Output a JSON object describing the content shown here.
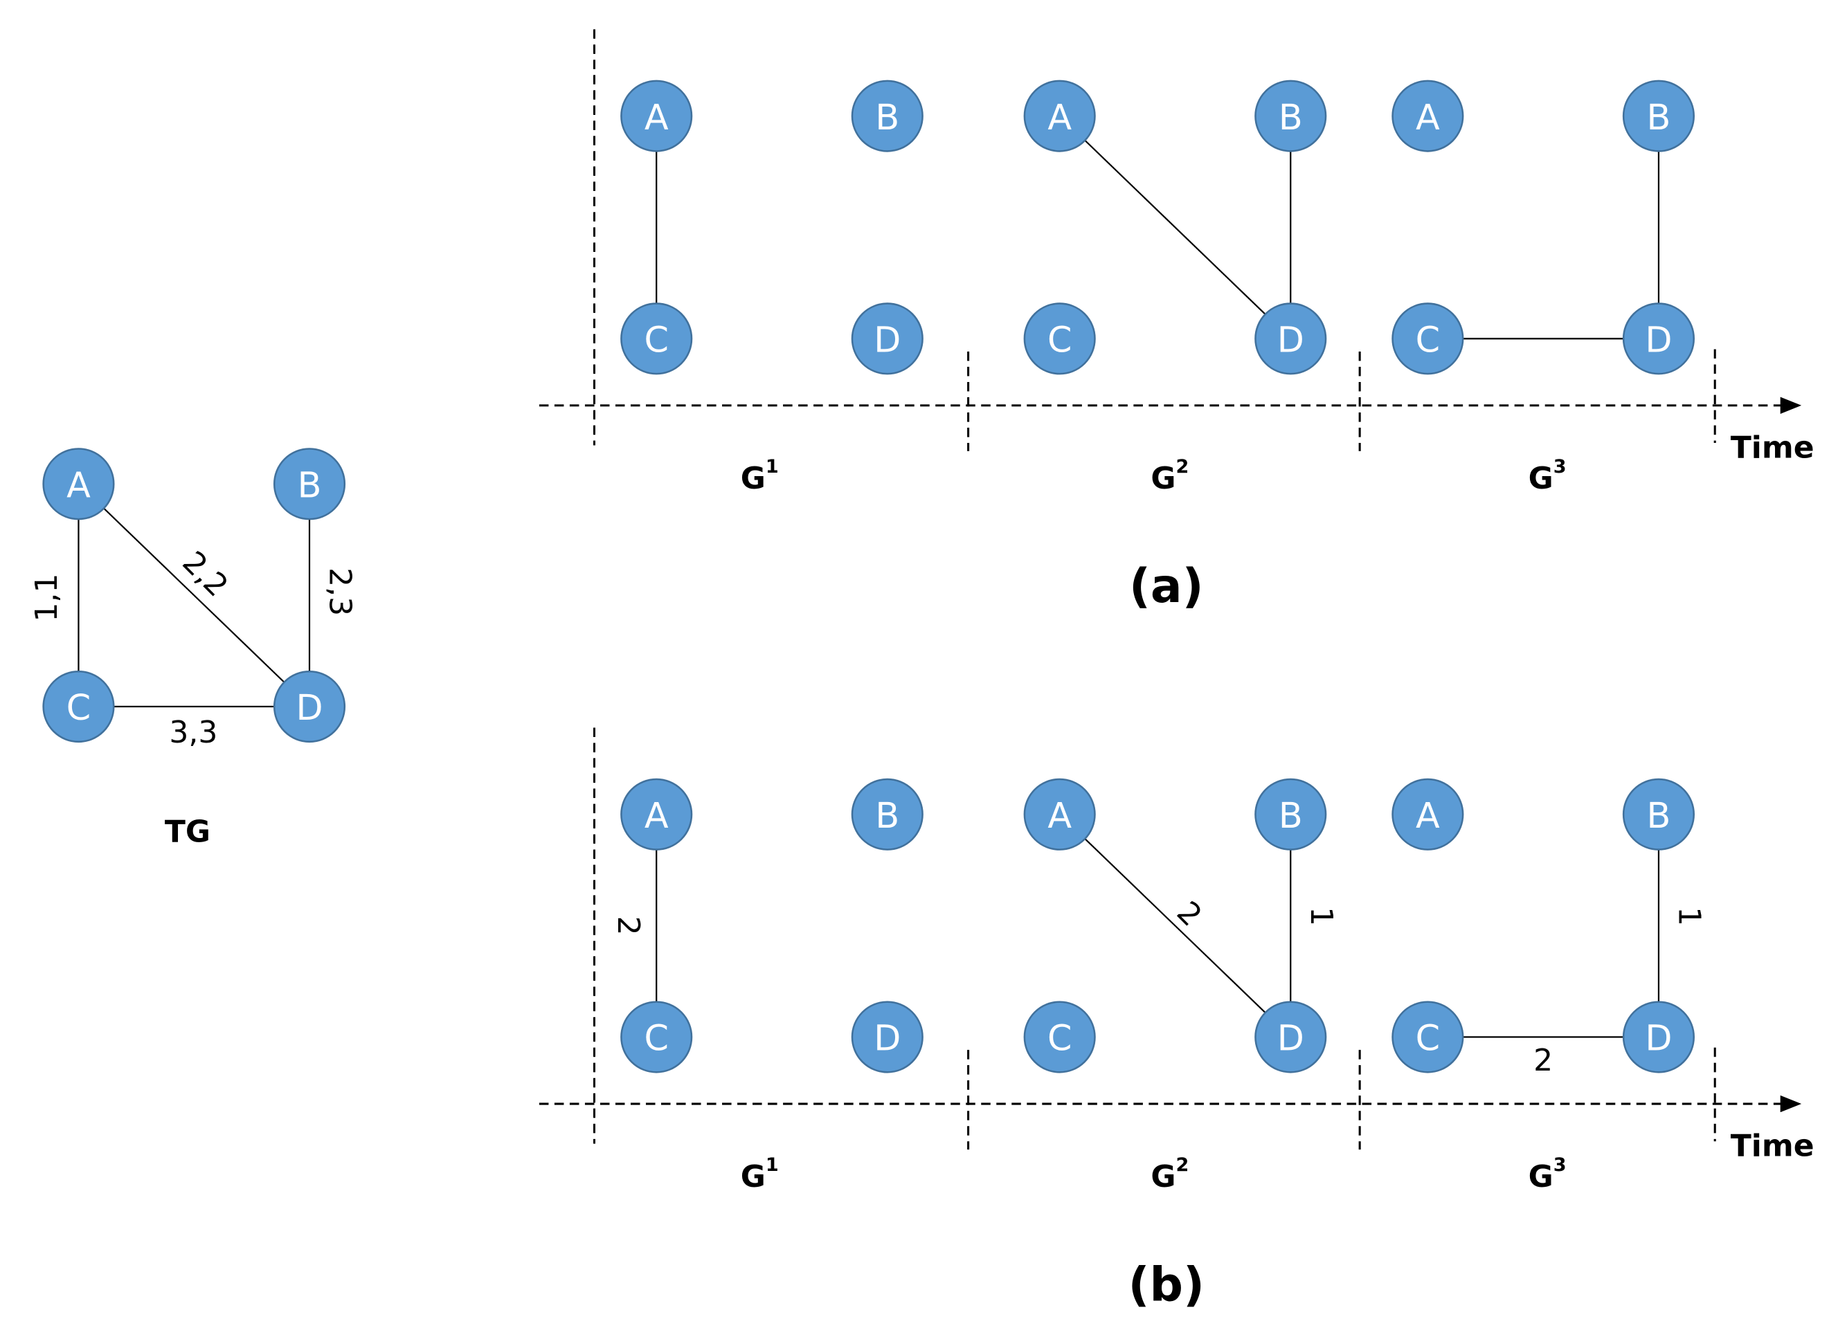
{
  "tg": {
    "nodes": [
      "A",
      "B",
      "C",
      "D"
    ],
    "edge_labels": [
      "1,1",
      "2,2",
      "2,3",
      "3,3"
    ],
    "caption": "TG"
  },
  "panels": [
    {
      "caption": "(a)",
      "axis_label": "Time",
      "snapshots": [
        {
          "name": {
            "base": "G",
            "sup": "1"
          },
          "nodes": [
            "A",
            "B",
            "C",
            "D"
          ]
        },
        {
          "name": {
            "base": "G",
            "sup": "2"
          },
          "nodes": [
            "A",
            "B",
            "C",
            "D"
          ]
        },
        {
          "name": {
            "base": "G",
            "sup": "3"
          },
          "nodes": [
            "A",
            "B",
            "C",
            "D"
          ]
        }
      ]
    },
    {
      "caption": "(b)",
      "axis_label": "Time",
      "snapshots": [
        {
          "name": {
            "base": "G",
            "sup": "1"
          },
          "nodes": [
            "A",
            "B",
            "C",
            "D"
          ],
          "edge_labels": [
            "2"
          ]
        },
        {
          "name": {
            "base": "G",
            "sup": "2"
          },
          "nodes": [
            "A",
            "B",
            "C",
            "D"
          ],
          "edge_labels": [
            "2",
            "1"
          ]
        },
        {
          "name": {
            "base": "G",
            "sup": "3"
          },
          "nodes": [
            "A",
            "B",
            "C",
            "D"
          ],
          "edge_labels": [
            "1",
            "2"
          ]
        }
      ]
    }
  ]
}
